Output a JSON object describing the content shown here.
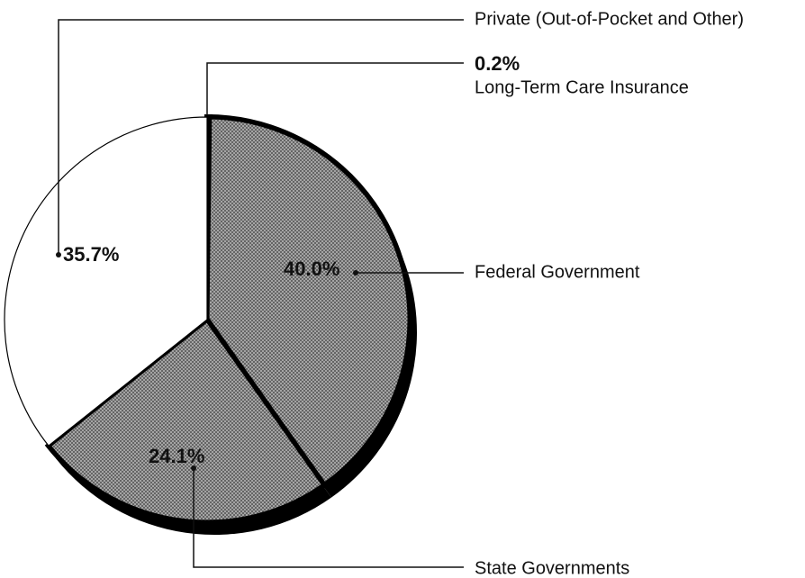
{
  "chart_data": {
    "type": "pie",
    "categories": [
      "Long-Term Care Insurance",
      "Federal Government",
      "State Governments",
      "Private (Out-of-Pocket and Other)"
    ],
    "values": [
      0.2,
      40.0,
      24.1,
      35.7
    ],
    "value_labels": [
      "0.2%",
      "40.0%",
      "24.1%",
      "35.7%"
    ],
    "colors": [
      "#9a9a9a",
      "#9a9a9a",
      "#9a9a9a",
      "#ffffff"
    ]
  }
}
